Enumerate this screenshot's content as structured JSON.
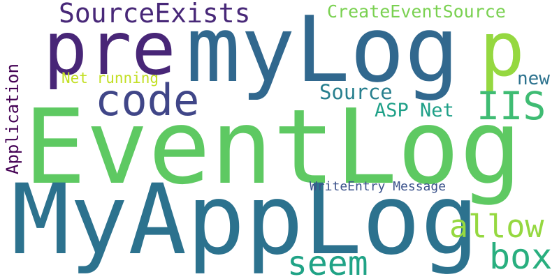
{
  "words": [
    {
      "text": "EventLog",
      "color": "#5ec962"
    },
    {
      "text": "MyAppLog",
      "color": "#2c728e"
    },
    {
      "text": "myLog",
      "color": "#31688e"
    },
    {
      "text": "pre",
      "color": "#482677"
    },
    {
      "text": "p",
      "color": "#95d840"
    },
    {
      "text": "code",
      "color": "#404688"
    },
    {
      "text": "SourceExists",
      "color": "#482878"
    },
    {
      "text": "CreateEventSource",
      "color": "#7ad151"
    },
    {
      "text": "IIS",
      "color": "#3fbc73"
    },
    {
      "text": "allow",
      "color": "#95d840"
    },
    {
      "text": "box",
      "color": "#29af7f"
    },
    {
      "text": "seem",
      "color": "#20a386"
    },
    {
      "text": "Application",
      "color": "#440154"
    },
    {
      "text": "ASP Net",
      "color": "#1fa088"
    },
    {
      "text": "Source",
      "color": "#277f8e"
    },
    {
      "text": "new",
      "color": "#2c728e"
    },
    {
      "text": "Net running",
      "color": "#c2df23"
    },
    {
      "text": "WriteEntry Message",
      "color": "#3b528b"
    }
  ]
}
